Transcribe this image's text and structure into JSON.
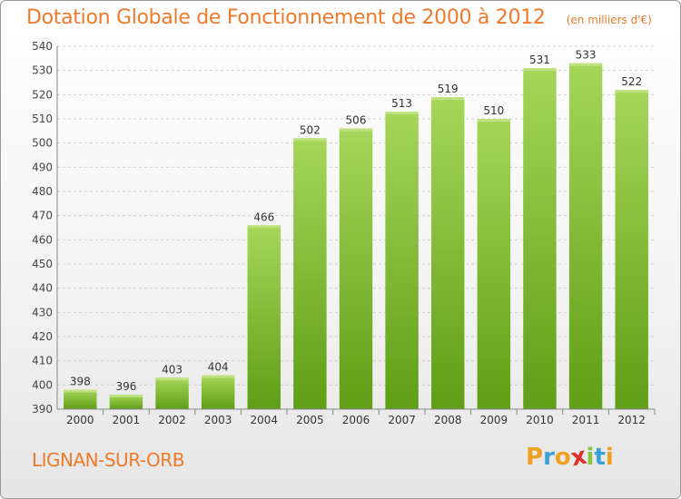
{
  "header": {
    "title": "Dotation Globale de Fonctionnement de 2000 à 2012",
    "unit": "(en milliers d'€)"
  },
  "footer": {
    "commune": "LIGNAN-SUR-ORB"
  },
  "logo": {
    "letters": [
      "P",
      "r",
      "o",
      "x",
      "i",
      "t",
      "i"
    ],
    "colors": [
      "#f0a020",
      "#3aa0d8",
      "#f0a020",
      "#e0302a",
      "#8ac43f",
      "#3aa0d8",
      "#f0a020"
    ]
  },
  "colors": {
    "bar_light": "#a6d65a",
    "bar_dark": "#5f9e16",
    "grid": "#cfcfcf",
    "title": "#ef7a2a"
  },
  "chart_data": {
    "type": "bar",
    "categories": [
      "2000",
      "2001",
      "2002",
      "2003",
      "2004",
      "2005",
      "2006",
      "2007",
      "2008",
      "2009",
      "2010",
      "2011",
      "2012"
    ],
    "values": [
      398,
      396,
      403,
      404,
      466,
      502,
      506,
      513,
      519,
      510,
      531,
      533,
      522
    ],
    "data_labels": [
      "398",
      "396",
      "403",
      "404",
      "466",
      "502",
      "506",
      "513",
      "519",
      "510",
      "531",
      "533",
      "522"
    ],
    "title": "Dotation Globale de Fonctionnement de 2000 à 2012",
    "subtitle": "(en milliers d'€)",
    "xlabel": "",
    "ylabel": "",
    "ylim": [
      390,
      540
    ],
    "yticks": [
      390,
      400,
      410,
      420,
      430,
      440,
      450,
      460,
      470,
      480,
      490,
      500,
      510,
      520,
      530,
      540
    ],
    "ytick_labels": [
      "390",
      "400",
      "410",
      "420",
      "430",
      "440",
      "450",
      "460",
      "470",
      "480",
      "490",
      "500",
      "510",
      "520",
      "530",
      "540"
    ],
    "grid": true,
    "legend": "none"
  }
}
